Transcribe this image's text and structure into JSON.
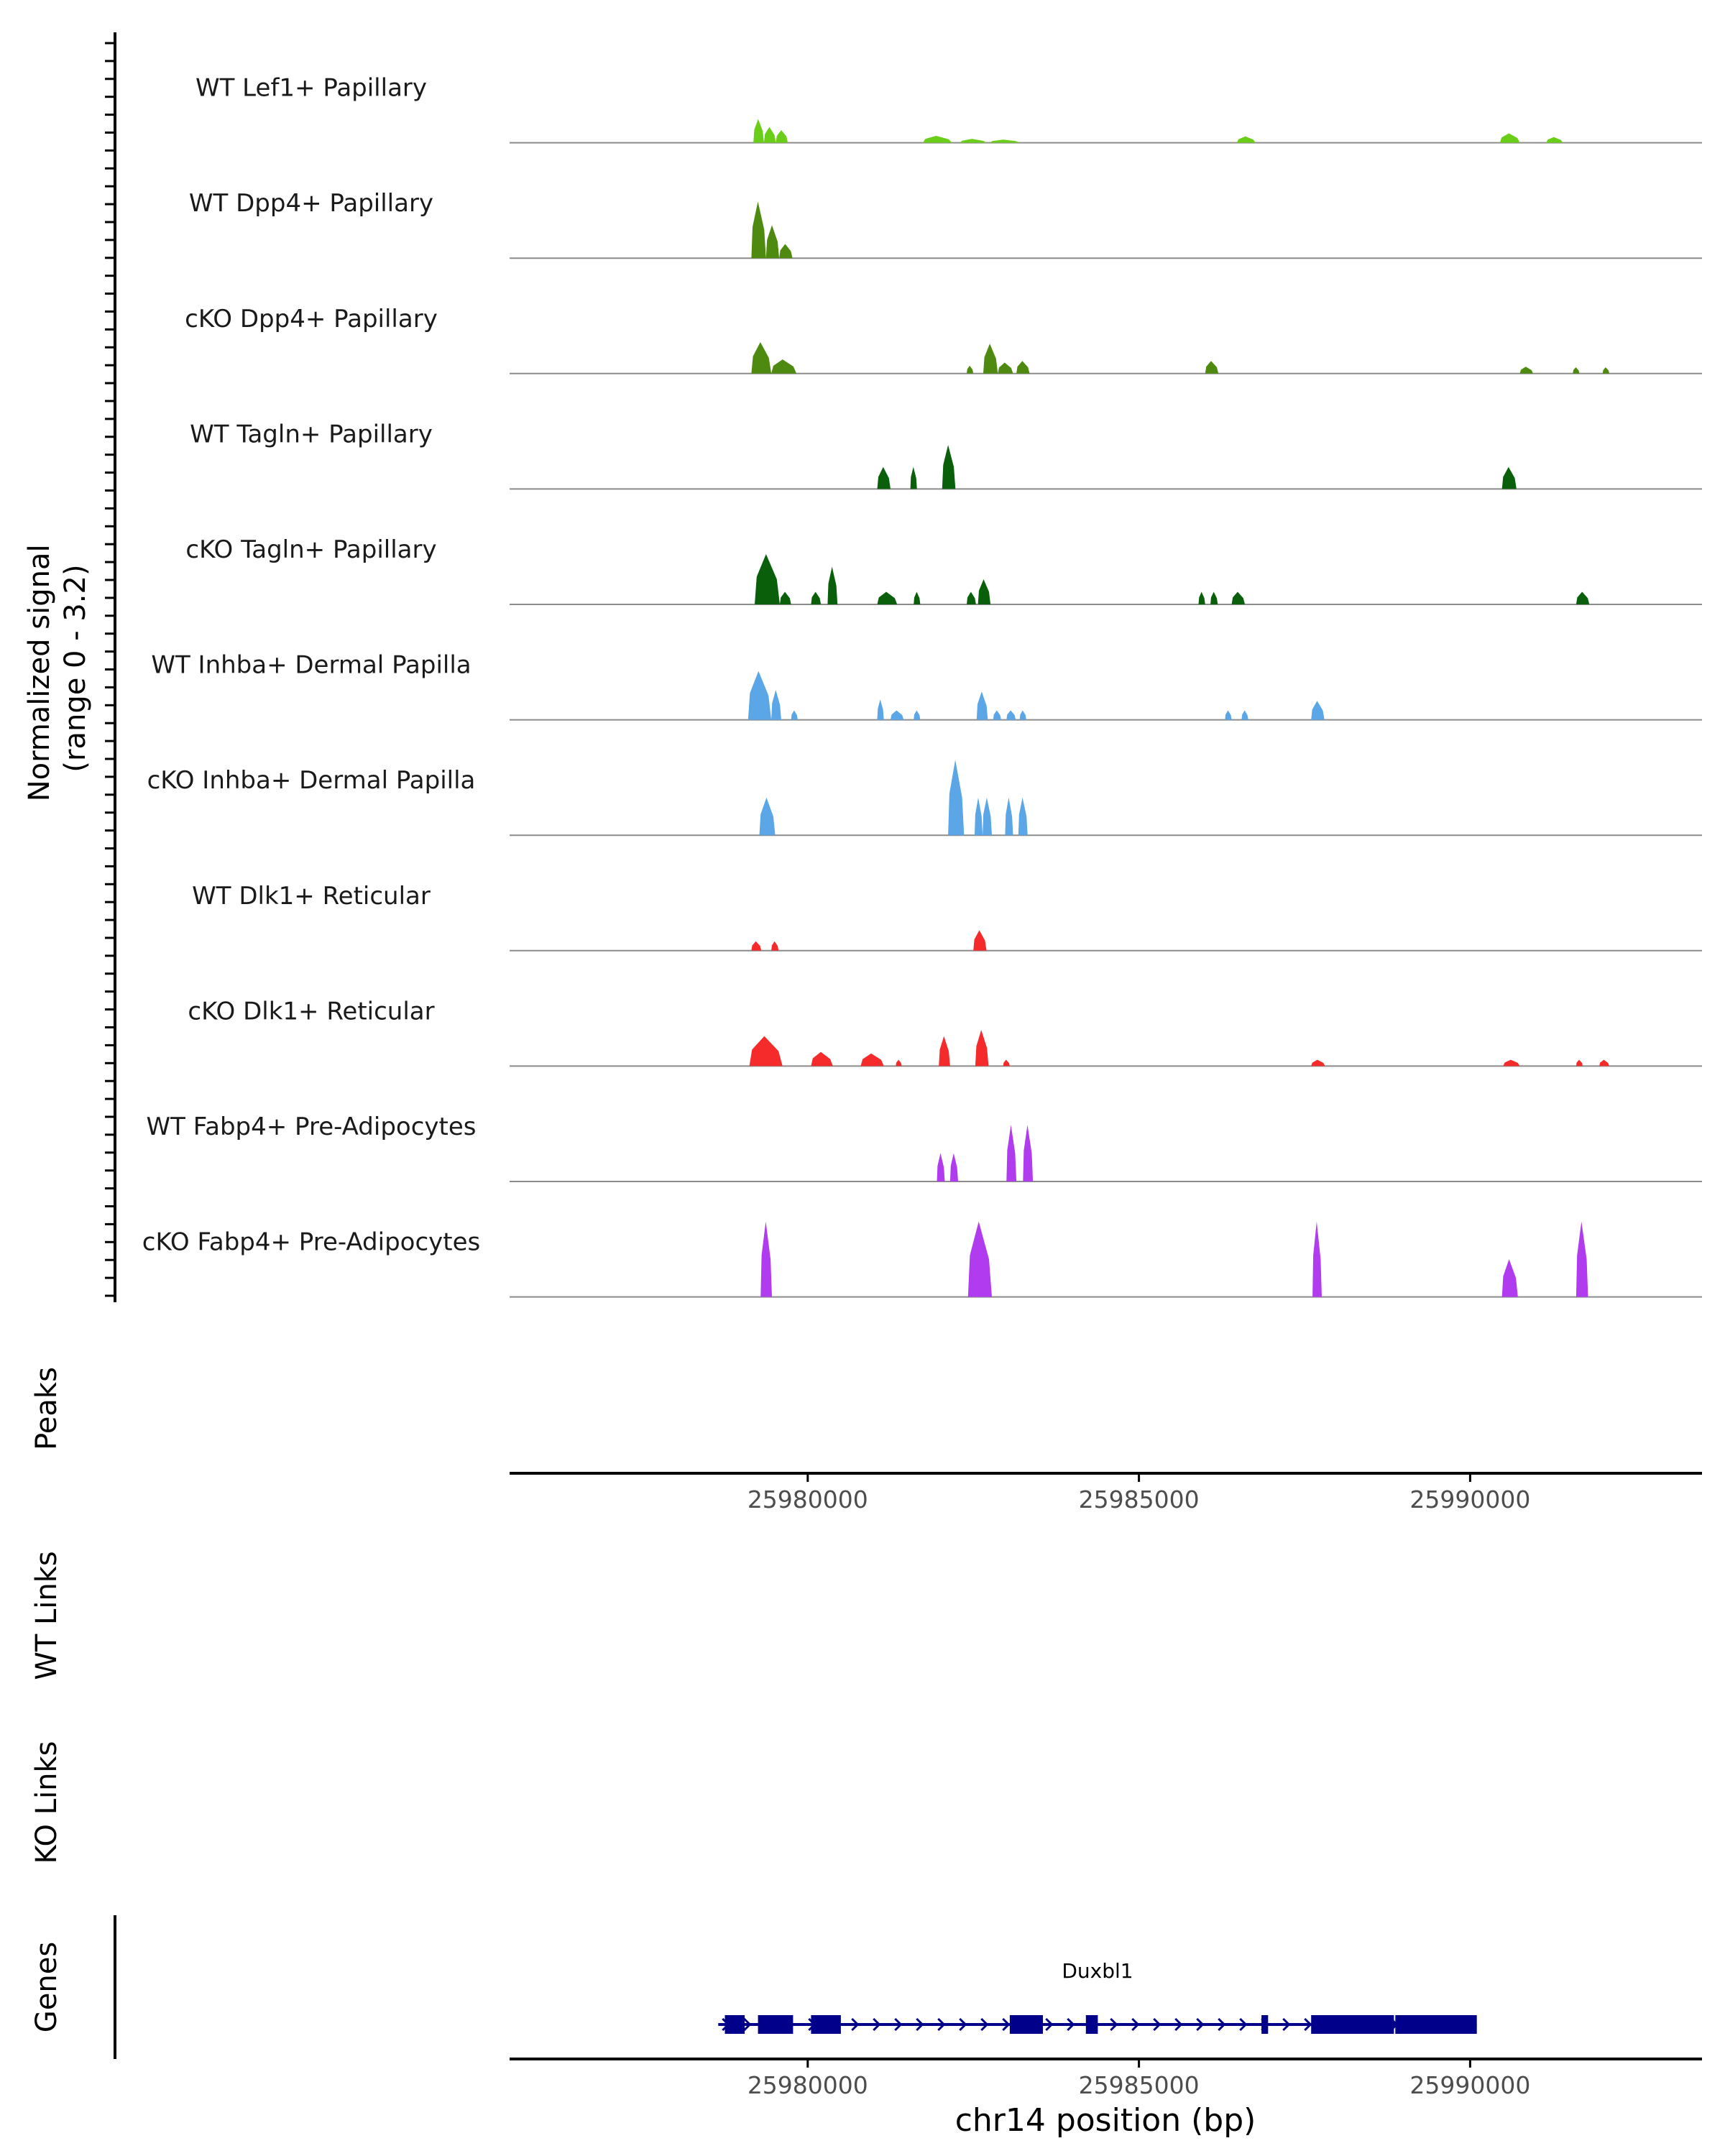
{
  "chart_data": {
    "type": "area",
    "title": "",
    "xlabel": "chr14 position (bp)",
    "x_range": [
      25975500,
      25993500
    ],
    "x_ticks": [
      25980000,
      25985000,
      25990000
    ],
    "x_tick_labels": [
      "25980000",
      "25985000",
      "25990000"
    ],
    "ylabel": "Normalized signal\n(range 0 - 3.2)",
    "ylim": [
      0,
      3.2
    ],
    "panel_labels": {
      "peaks": "Peaks",
      "wt_links": "WT Links",
      "ko_links": "KO Links",
      "genes": "Genes"
    },
    "series": [
      {
        "name": "WT Lef1+ Papillary",
        "color": "#6acd18",
        "peaks": [
          [
            25979180,
            25979340,
            0.75
          ],
          [
            25979340,
            25979520,
            0.5
          ],
          [
            25979520,
            25979700,
            0.4
          ],
          [
            25981740,
            25982180,
            0.22
          ],
          [
            25982300,
            25982700,
            0.12
          ],
          [
            25982750,
            25983200,
            0.1
          ],
          [
            25986480,
            25986760,
            0.2
          ],
          [
            25990450,
            25990750,
            0.3
          ],
          [
            25991150,
            25991400,
            0.18
          ]
        ]
      },
      {
        "name": "WT Dpp4+ Papillary",
        "color": "#4f8a10",
        "peaks": [
          [
            25979150,
            25979370,
            1.8
          ],
          [
            25979370,
            25979570,
            1.05
          ],
          [
            25979570,
            25979770,
            0.45
          ]
        ]
      },
      {
        "name": "cKO Dpp4+ Papillary",
        "color": "#4f8a10",
        "peaks": [
          [
            25979150,
            25979450,
            1.0
          ],
          [
            25979450,
            25979830,
            0.45
          ],
          [
            25982400,
            25982500,
            0.25
          ],
          [
            25982650,
            25982870,
            0.95
          ],
          [
            25982870,
            25983100,
            0.35
          ],
          [
            25983150,
            25983350,
            0.4
          ],
          [
            25986000,
            25986200,
            0.4
          ],
          [
            25990750,
            25990950,
            0.22
          ],
          [
            25991550,
            25991650,
            0.2
          ],
          [
            25992000,
            25992100,
            0.2
          ]
        ]
      },
      {
        "name": "WT Tagln+ Papillary",
        "color": "#0a5f0a",
        "peaks": [
          [
            25981050,
            25981250,
            0.7
          ],
          [
            25981550,
            25981650,
            0.7
          ],
          [
            25982030,
            25982230,
            1.4
          ],
          [
            25990480,
            25990700,
            0.7
          ]
        ]
      },
      {
        "name": "cKO Tagln+ Papillary",
        "color": "#0a5f0a",
        "peaks": [
          [
            25979200,
            25979580,
            1.6
          ],
          [
            25979580,
            25979750,
            0.4
          ],
          [
            25980050,
            25980200,
            0.4
          ],
          [
            25980300,
            25980450,
            1.2
          ],
          [
            25981050,
            25981350,
            0.4
          ],
          [
            25981600,
            25981700,
            0.4
          ],
          [
            25982400,
            25982540,
            0.4
          ],
          [
            25982570,
            25982760,
            0.8
          ],
          [
            25985900,
            25986000,
            0.4
          ],
          [
            25986080,
            25986190,
            0.4
          ],
          [
            25986400,
            25986600,
            0.4
          ],
          [
            25991600,
            25991800,
            0.4
          ]
        ]
      },
      {
        "name": "WT Inhba+ Dermal Papilla",
        "color": "#5aa6e6",
        "peaks": [
          [
            25979100,
            25979450,
            1.55
          ],
          [
            25979450,
            25979600,
            0.95
          ],
          [
            25979750,
            25979850,
            0.3
          ],
          [
            25981050,
            25981150,
            0.65
          ],
          [
            25981250,
            25981450,
            0.3
          ],
          [
            25981600,
            25981700,
            0.3
          ],
          [
            25982550,
            25982720,
            0.9
          ],
          [
            25982800,
            25982920,
            0.3
          ],
          [
            25983000,
            25983140,
            0.3
          ],
          [
            25983200,
            25983300,
            0.3
          ],
          [
            25986300,
            25986400,
            0.3
          ],
          [
            25986550,
            25986650,
            0.3
          ],
          [
            25987600,
            25987800,
            0.6
          ]
        ]
      },
      {
        "name": "cKO Inhba+ Dermal Papilla",
        "color": "#5aa6e6",
        "peaks": [
          [
            25979270,
            25979510,
            1.2
          ],
          [
            25982120,
            25982360,
            2.4
          ],
          [
            25982520,
            25982640,
            1.2
          ],
          [
            25982640,
            25982780,
            1.2
          ],
          [
            25982980,
            25983100,
            1.2
          ],
          [
            25983180,
            25983320,
            1.2
          ]
        ]
      },
      {
        "name": "WT Dlk1+ Reticular",
        "color": "#f52a2a",
        "peaks": [
          [
            25979150,
            25979300,
            0.3
          ],
          [
            25979450,
            25979560,
            0.3
          ],
          [
            25982500,
            25982700,
            0.65
          ]
        ]
      },
      {
        "name": "cKO Dlk1+ Reticular",
        "color": "#f52a2a",
        "peaks": [
          [
            25979120,
            25979620,
            0.95
          ],
          [
            25980050,
            25980380,
            0.45
          ],
          [
            25980800,
            25981150,
            0.4
          ],
          [
            25981330,
            25981420,
            0.2
          ],
          [
            25981980,
            25982150,
            0.95
          ],
          [
            25982530,
            25982730,
            1.15
          ],
          [
            25982950,
            25983050,
            0.2
          ],
          [
            25987600,
            25987810,
            0.2
          ],
          [
            25990500,
            25990750,
            0.2
          ],
          [
            25991600,
            25991700,
            0.2
          ],
          [
            25991950,
            25992100,
            0.2
          ]
        ]
      },
      {
        "name": "WT Fabp4+ Pre-Adipocytes",
        "color": "#b03bef",
        "peaks": [
          [
            25981950,
            25982070,
            0.9
          ],
          [
            25982150,
            25982270,
            0.9
          ],
          [
            25983000,
            25983150,
            1.8
          ],
          [
            25983250,
            25983400,
            1.8
          ]
        ]
      },
      {
        "name": "cKO Fabp4+ Pre-Adipocytes",
        "color": "#b03bef",
        "peaks": [
          [
            25979290,
            25979460,
            2.4
          ],
          [
            25982420,
            25982780,
            2.4
          ],
          [
            25987620,
            25987760,
            2.4
          ],
          [
            25990480,
            25990720,
            1.2
          ],
          [
            25991600,
            25991780,
            2.4
          ]
        ]
      }
    ],
    "gene": {
      "name": "Duxbl1",
      "color": "#00008b",
      "start": 25978650,
      "end": 25990100,
      "strand": "+",
      "exons": [
        [
          25978750,
          25979050
        ],
        [
          25979250,
          25979780
        ],
        [
          25980050,
          25980500
        ],
        [
          25983050,
          25983550
        ],
        [
          25984200,
          25984380
        ],
        [
          25986850,
          25986950
        ],
        [
          25987600,
          25988850
        ],
        [
          25988870,
          25990100
        ]
      ]
    }
  }
}
